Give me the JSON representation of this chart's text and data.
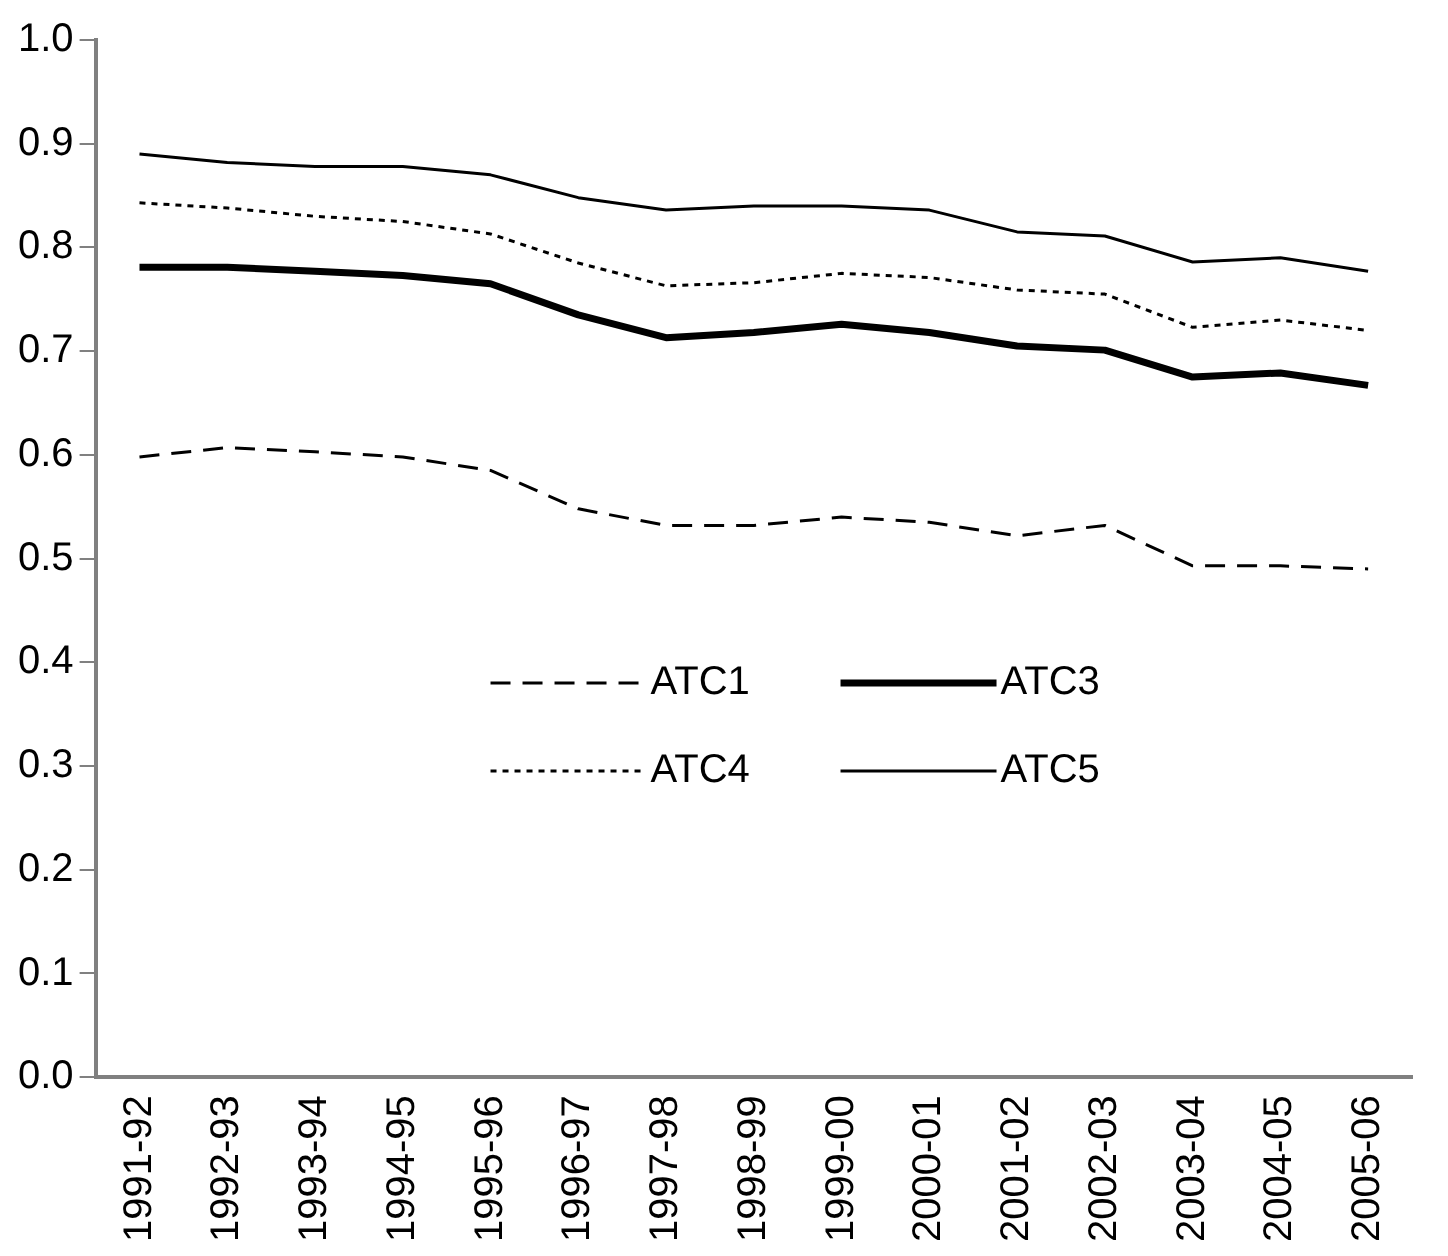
{
  "chart_data": {
    "type": "line",
    "categories": [
      "1991-92",
      "1992-93",
      "1993-94",
      "1994-95",
      "1995-96",
      "1996-97",
      "1997-98",
      "1998-99",
      "1999-00",
      "2000-01",
      "2001-02",
      "2002-03",
      "2003-04",
      "2004-05",
      "2005-06"
    ],
    "ylim": [
      0,
      1
    ],
    "yticks": [
      {
        "value": 0,
        "label": "0.0"
      },
      {
        "value": 0.1,
        "label": "0.1"
      },
      {
        "value": 0.2,
        "label": "0.2"
      },
      {
        "value": 0.3,
        "label": "0.3"
      },
      {
        "value": 0.4,
        "label": "0.4"
      },
      {
        "value": 0.5,
        "label": "0.5"
      },
      {
        "value": 0.6,
        "label": "0.6"
      },
      {
        "value": 0.7,
        "label": "0.7"
      },
      {
        "value": 0.8,
        "label": "0.8"
      },
      {
        "value": 0.9,
        "label": "0.9"
      },
      {
        "value": 1,
        "label": "1.0"
      }
    ],
    "grid": false,
    "legend": "center",
    "marker": "none",
    "series": [
      {
        "name": "ATC1",
        "color": "#000000",
        "line_style": "dashed",
        "values": [
          0.598,
          0.607,
          0.603,
          0.598,
          0.585,
          0.548,
          0.532,
          0.532,
          0.54,
          0.535,
          0.522,
          0.532,
          0.493,
          0.493,
          0.49
        ]
      },
      {
        "name": "ATC3",
        "color": "#000000",
        "line_style": "solid",
        "values": [
          0.781,
          0.781,
          0.777,
          0.773,
          0.765,
          0.735,
          0.713,
          0.718,
          0.726,
          0.718,
          0.705,
          0.701,
          0.675,
          0.679,
          0.667
        ]
      },
      {
        "name": "ATC4",
        "color": "#000000",
        "line_style": "dotted",
        "values": [
          0.843,
          0.838,
          0.83,
          0.825,
          0.813,
          0.785,
          0.763,
          0.766,
          0.775,
          0.771,
          0.759,
          0.755,
          0.723,
          0.73,
          0.72
        ]
      },
      {
        "name": "ATC5",
        "color": "#000000",
        "line_style": "solid",
        "values": [
          0.89,
          0.882,
          0.878,
          0.878,
          0.87,
          0.848,
          0.836,
          0.84,
          0.84,
          0.836,
          0.815,
          0.811,
          0.786,
          0.79,
          0.777
        ]
      }
    ]
  }
}
